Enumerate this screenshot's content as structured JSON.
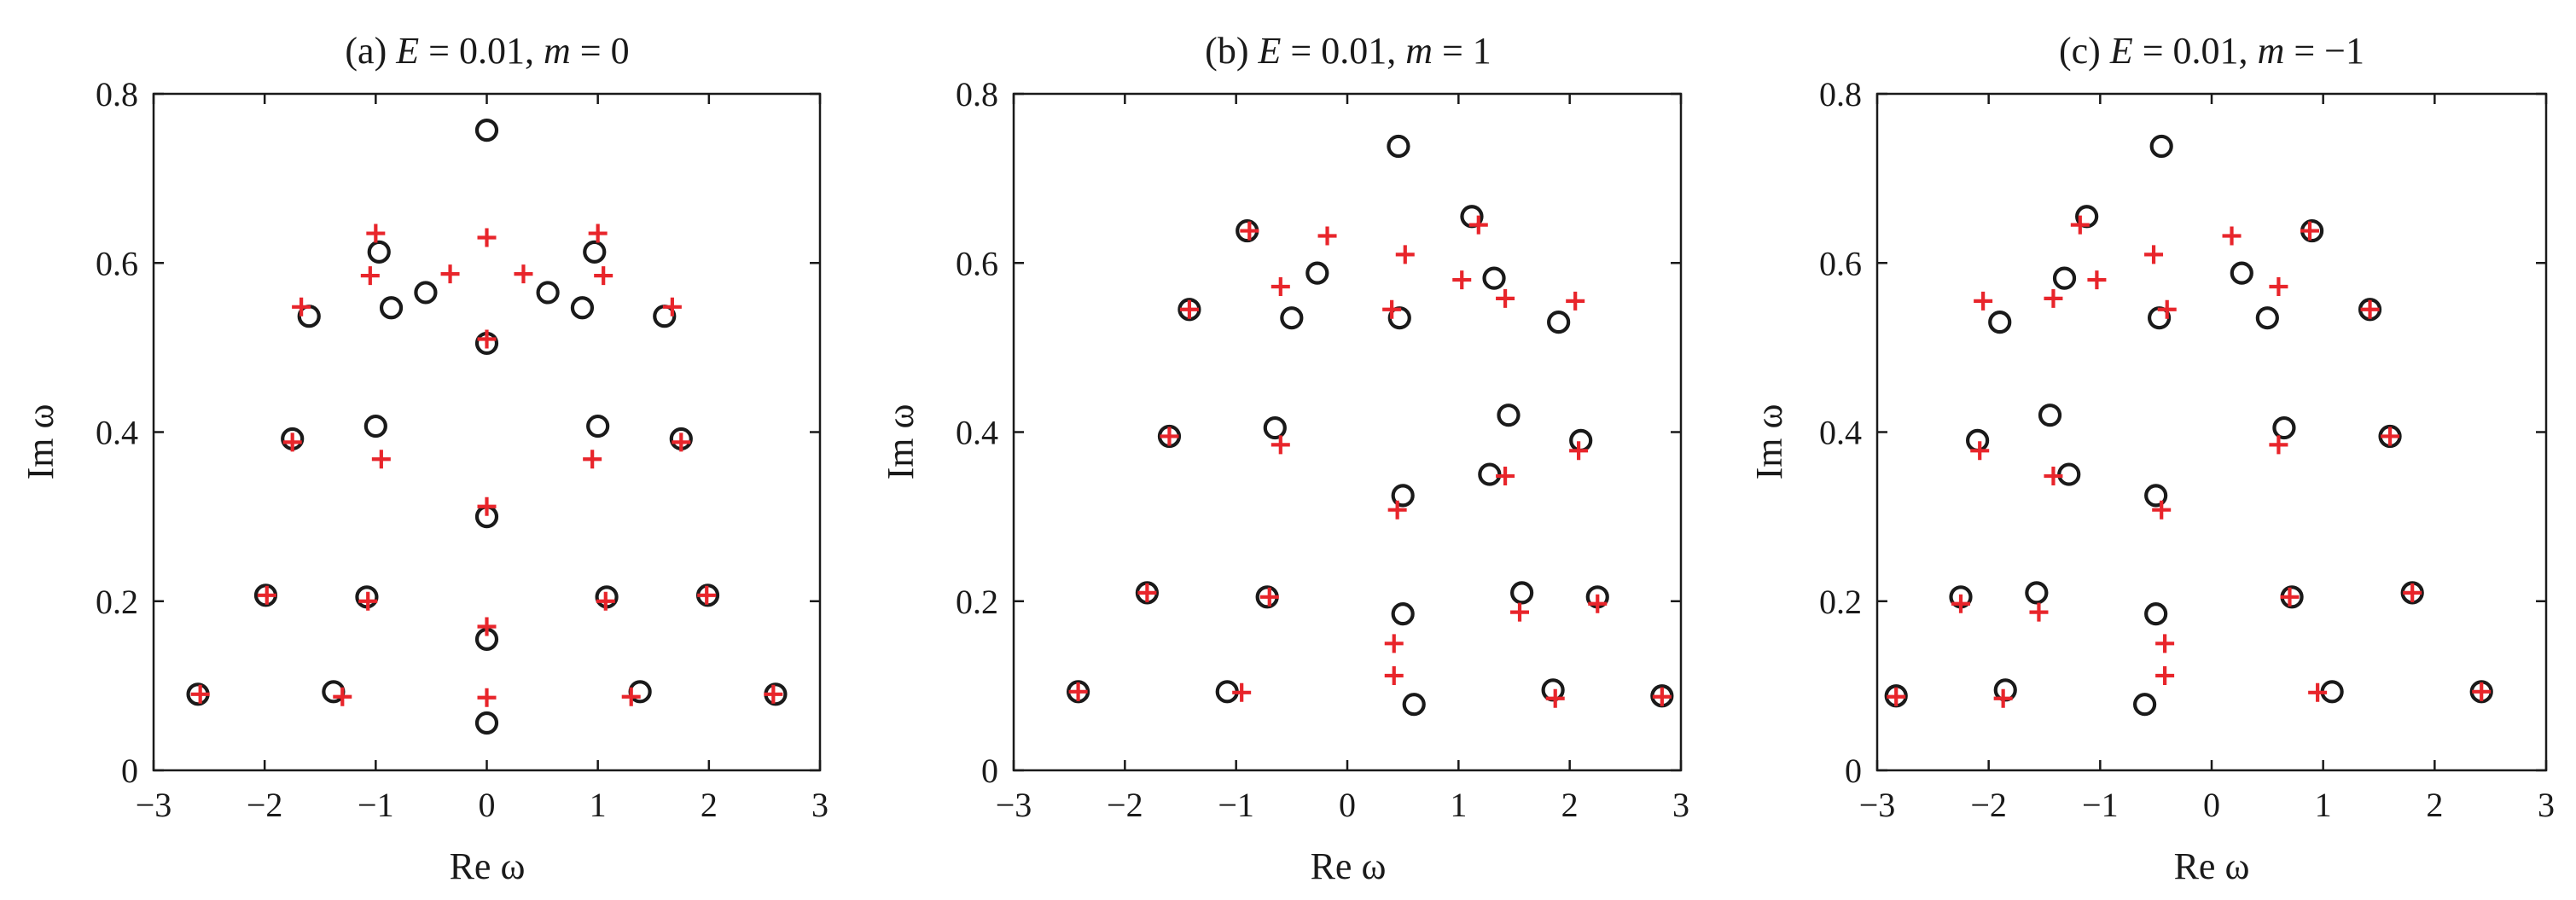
{
  "colors": {
    "circle": "#1a1a1a",
    "plus": "#e8252b",
    "axes": "#1a1a1a"
  },
  "chart_data": [
    {
      "type": "scatter",
      "title_prefix": "(a) ",
      "title_var1": "E",
      "title_mid": " = 0.01, ",
      "title_var2": "m",
      "title_suffix": " = 0",
      "xlabel": "Re ω",
      "ylabel": "Im ω",
      "xlim": [
        -3,
        3
      ],
      "ylim": [
        0,
        0.8
      ],
      "xticks": [
        "−3",
        "−2",
        "−1",
        "0",
        "1",
        "2",
        "3"
      ],
      "yticks": [
        "0",
        "0.2",
        "0.4",
        "0.6",
        "0.8"
      ],
      "grid": false,
      "series": [
        {
          "marker": "circle",
          "points": [
            [
              0,
              0.757
            ],
            [
              -0.97,
              0.613
            ],
            [
              0.97,
              0.613
            ],
            [
              -0.86,
              0.547
            ],
            [
              0.86,
              0.547
            ],
            [
              -0.55,
              0.565
            ],
            [
              0.55,
              0.565
            ],
            [
              -1.6,
              0.537
            ],
            [
              1.6,
              0.537
            ],
            [
              0,
              0.505
            ],
            [
              -1.75,
              0.392
            ],
            [
              1.75,
              0.392
            ],
            [
              -1.0,
              0.407
            ],
            [
              1.0,
              0.407
            ],
            [
              0,
              0.3
            ],
            [
              -1.99,
              0.207
            ],
            [
              1.99,
              0.207
            ],
            [
              -1.08,
              0.205
            ],
            [
              1.08,
              0.205
            ],
            [
              0,
              0.155
            ],
            [
              -2.6,
              0.09
            ],
            [
              2.6,
              0.09
            ],
            [
              -1.38,
              0.093
            ],
            [
              1.38,
              0.093
            ],
            [
              0,
              0.056
            ]
          ]
        },
        {
          "marker": "plus",
          "points": [
            [
              -1.0,
              0.635
            ],
            [
              1.0,
              0.635
            ],
            [
              0,
              0.63
            ],
            [
              -1.05,
              0.585
            ],
            [
              1.05,
              0.585
            ],
            [
              -0.33,
              0.587
            ],
            [
              0.33,
              0.587
            ],
            [
              -1.67,
              0.548
            ],
            [
              1.67,
              0.548
            ],
            [
              0,
              0.51
            ],
            [
              -1.75,
              0.388
            ],
            [
              1.75,
              0.388
            ],
            [
              -0.95,
              0.368
            ],
            [
              0.95,
              0.368
            ],
            [
              0,
              0.312
            ],
            [
              -1.98,
              0.207
            ],
            [
              1.98,
              0.207
            ],
            [
              -1.07,
              0.2
            ],
            [
              1.07,
              0.2
            ],
            [
              0,
              0.17
            ],
            [
              -2.58,
              0.09
            ],
            [
              2.58,
              0.09
            ],
            [
              -1.3,
              0.087
            ],
            [
              1.3,
              0.087
            ],
            [
              0,
              0.086
            ]
          ]
        }
      ]
    },
    {
      "type": "scatter",
      "title_prefix": "(b) ",
      "title_var1": "E",
      "title_mid": " = 0.01, ",
      "title_var2": "m",
      "title_suffix": " = 1",
      "xlabel": "Re ω",
      "ylabel": "Im ω",
      "xlim": [
        -3,
        3
      ],
      "ylim": [
        0,
        0.8
      ],
      "xticks": [
        "−3",
        "−2",
        "−1",
        "0",
        "1",
        "2",
        "3"
      ],
      "yticks": [
        "0",
        "0.2",
        "0.4",
        "0.6",
        "0.8"
      ],
      "grid": false,
      "series": [
        {
          "marker": "circle",
          "points": [
            [
              0.46,
              0.738
            ],
            [
              1.12,
              0.655
            ],
            [
              -0.9,
              0.638
            ],
            [
              -0.27,
              0.588
            ],
            [
              1.32,
              0.582
            ],
            [
              -1.42,
              0.545
            ],
            [
              -0.5,
              0.535
            ],
            [
              0.47,
              0.535
            ],
            [
              1.9,
              0.53
            ],
            [
              1.45,
              0.42
            ],
            [
              -1.6,
              0.395
            ],
            [
              -0.65,
              0.405
            ],
            [
              2.1,
              0.39
            ],
            [
              1.28,
              0.35
            ],
            [
              0.5,
              0.325
            ],
            [
              -1.8,
              0.21
            ],
            [
              -0.72,
              0.205
            ],
            [
              1.57,
              0.21
            ],
            [
              2.25,
              0.205
            ],
            [
              0.5,
              0.185
            ],
            [
              -2.42,
              0.093
            ],
            [
              -1.08,
              0.093
            ],
            [
              1.85,
              0.095
            ],
            [
              2.83,
              0.088
            ],
            [
              0.6,
              0.078
            ]
          ]
        },
        {
          "marker": "plus",
          "points": [
            [
              1.18,
              0.645
            ],
            [
              -0.88,
              0.638
            ],
            [
              -0.18,
              0.632
            ],
            [
              0.52,
              0.61
            ],
            [
              -0.6,
              0.572
            ],
            [
              1.03,
              0.58
            ],
            [
              1.42,
              0.558
            ],
            [
              -1.42,
              0.545
            ],
            [
              0.4,
              0.545
            ],
            [
              2.05,
              0.555
            ],
            [
              -1.6,
              0.395
            ],
            [
              -0.6,
              0.385
            ],
            [
              2.08,
              0.378
            ],
            [
              1.42,
              0.348
            ],
            [
              0.45,
              0.308
            ],
            [
              -1.8,
              0.21
            ],
            [
              -0.7,
              0.205
            ],
            [
              1.55,
              0.187
            ],
            [
              2.25,
              0.197
            ],
            [
              0.42,
              0.15
            ],
            [
              -2.42,
              0.093
            ],
            [
              -0.95,
              0.092
            ],
            [
              0.42,
              0.112
            ],
            [
              1.87,
              0.085
            ],
            [
              2.83,
              0.087
            ]
          ]
        }
      ]
    },
    {
      "type": "scatter",
      "title_prefix": "(c) ",
      "title_var1": "E",
      "title_mid": " = 0.01, ",
      "title_var2": "m",
      "title_suffix": " = −1",
      "xlabel": "Re ω",
      "ylabel": "Im ω",
      "xlim": [
        -3,
        3
      ],
      "ylim": [
        0,
        0.8
      ],
      "xticks": [
        "−3",
        "−2",
        "−1",
        "0",
        "1",
        "2",
        "3"
      ],
      "yticks": [
        "0",
        "0.2",
        "0.4",
        "0.6",
        "0.8"
      ],
      "grid": false,
      "series": [
        {
          "marker": "circle",
          "points": [
            [
              -0.45,
              0.738
            ],
            [
              -1.12,
              0.655
            ],
            [
              0.9,
              0.638
            ],
            [
              0.27,
              0.588
            ],
            [
              -1.32,
              0.582
            ],
            [
              1.42,
              0.545
            ],
            [
              0.5,
              0.535
            ],
            [
              -0.47,
              0.535
            ],
            [
              -1.9,
              0.53
            ],
            [
              -1.45,
              0.42
            ],
            [
              1.6,
              0.395
            ],
            [
              0.65,
              0.405
            ],
            [
              -2.1,
              0.39
            ],
            [
              -1.28,
              0.35
            ],
            [
              -0.5,
              0.325
            ],
            [
              1.8,
              0.21
            ],
            [
              0.72,
              0.205
            ],
            [
              -1.57,
              0.21
            ],
            [
              -2.25,
              0.205
            ],
            [
              -0.5,
              0.185
            ],
            [
              2.42,
              0.093
            ],
            [
              1.08,
              0.093
            ],
            [
              -1.85,
              0.095
            ],
            [
              -2.83,
              0.088
            ],
            [
              -0.6,
              0.078
            ]
          ]
        },
        {
          "marker": "plus",
          "points": [
            [
              -1.18,
              0.645
            ],
            [
              0.88,
              0.638
            ],
            [
              0.18,
              0.632
            ],
            [
              -0.52,
              0.61
            ],
            [
              0.6,
              0.572
            ],
            [
              -1.03,
              0.58
            ],
            [
              -1.42,
              0.558
            ],
            [
              1.42,
              0.545
            ],
            [
              -0.4,
              0.545
            ],
            [
              -2.05,
              0.555
            ],
            [
              1.6,
              0.395
            ],
            [
              0.6,
              0.385
            ],
            [
              -2.08,
              0.378
            ],
            [
              -1.42,
              0.348
            ],
            [
              -0.45,
              0.308
            ],
            [
              1.8,
              0.21
            ],
            [
              0.7,
              0.205
            ],
            [
              -1.55,
              0.187
            ],
            [
              -2.25,
              0.197
            ],
            [
              -0.42,
              0.15
            ],
            [
              2.42,
              0.093
            ],
            [
              0.95,
              0.092
            ],
            [
              -0.42,
              0.112
            ],
            [
              -1.87,
              0.085
            ],
            [
              -2.83,
              0.087
            ]
          ]
        }
      ]
    }
  ]
}
